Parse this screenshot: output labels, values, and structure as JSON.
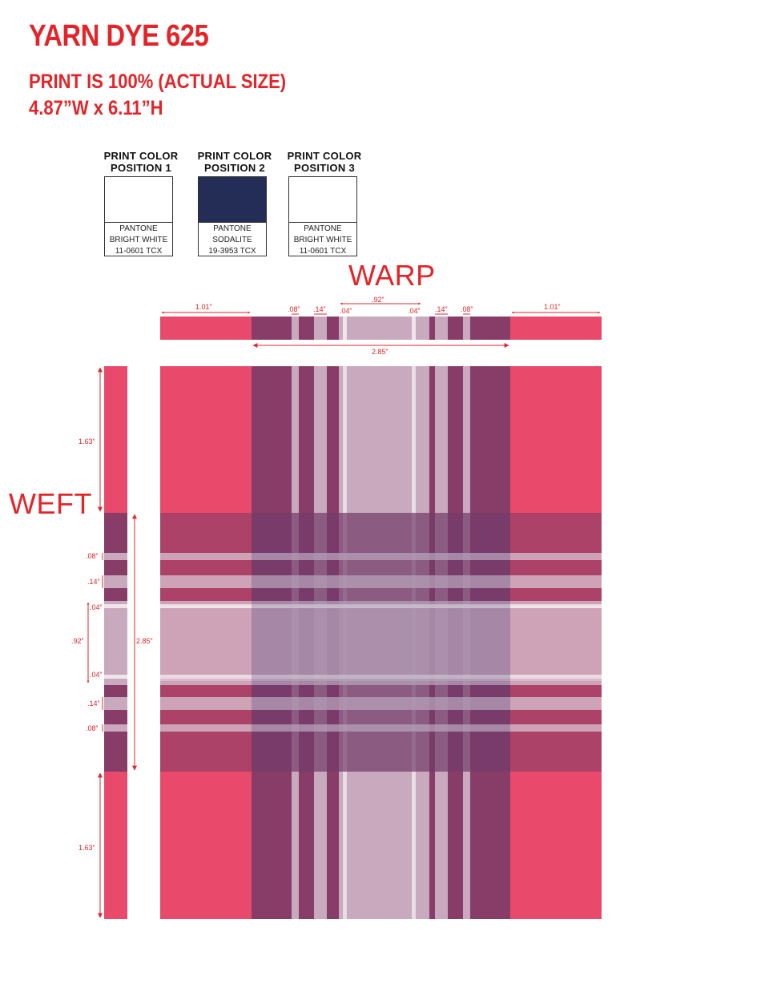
{
  "header": {
    "title": "YARN DYE 625",
    "line1": "PRINT IS 100% (ACTUAL SIZE)",
    "line2": "4.87”W x 6.11”H"
  },
  "swatches": [
    {
      "heading1": "PRINT COLOR",
      "heading2": "POSITION 1",
      "color": "#ffffff",
      "line1": "PANTONE",
      "line2": "BRIGHT WHITE",
      "line3": "11-0601 TCX"
    },
    {
      "heading1": "PRINT COLOR",
      "heading2": "POSITION 2",
      "color": "#232d55",
      "line1": "PANTONE",
      "line2": "SODALITE",
      "line3": "19-3953 TCX"
    },
    {
      "heading1": "PRINT COLOR",
      "heading2": "POSITION 3",
      "color": "#ffffff",
      "line1": "PANTONE",
      "line2": "BRIGHT WHITE",
      "line3": "11-0601 TCX"
    }
  ],
  "labels": {
    "warp": "WARP",
    "weft": "WEFT"
  },
  "warp_dims": {
    "left_block": "1.01”",
    "s08a": ".08”",
    "s14a": ".14”",
    "s04a": ".04”",
    "center": ".92”",
    "s04b": ".04”",
    "s14b": ".14”",
    "s08b": ".08”",
    "right_block": "1.01”",
    "total": "2.85”"
  },
  "weft_dims": {
    "top_block": "1.63”",
    "s08a": ".08”",
    "s14a": ".14”",
    "s04a": ".04”",
    "center": ".92”",
    "total": "2.85”",
    "s04b": ".04”",
    "s14b": ".14”",
    "s08b": ".08”",
    "bottom_block": "1.63”"
  },
  "colors": {
    "red": "#e94a6b",
    "plum": "#883d69",
    "lilac": "#c9a9bd",
    "white": "#ffffff",
    "annotation": "#e32428",
    "navy": "#232d55"
  }
}
